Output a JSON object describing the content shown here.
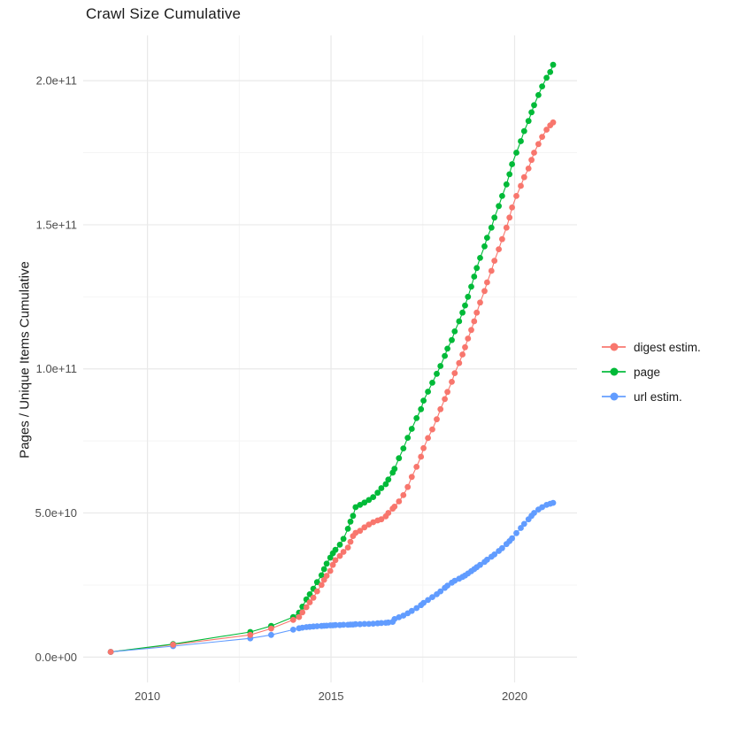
{
  "chart_data": {
    "type": "scatter",
    "title": "Crawl Size Cumulative",
    "xlabel": "",
    "ylabel": "Pages / Unique Items Cumulative",
    "xlim": [
      2008.25,
      2021.7
    ],
    "ylim": [
      -8800000000.0,
      215700000000.0
    ],
    "grid": true,
    "legend_position": "right",
    "colors": {
      "grid_major": "#E9E9E9",
      "grid_minor": "#F4F4F4",
      "axis_text": "#4D4D4D",
      "title_text": "#1a1a1a",
      "background": "#FFFFFF"
    },
    "x_axis": {
      "ticks": [
        {
          "value": 2010,
          "label": "2010"
        },
        {
          "value": 2015,
          "label": "2015"
        },
        {
          "value": 2020,
          "label": "2020"
        }
      ],
      "minor": [
        2012.5,
        2017.5
      ]
    },
    "y_axis": {
      "ticks": [
        {
          "value": 0,
          "label": "0.0e+00"
        },
        {
          "value": 50000000000.0,
          "label": "5.0e+10"
        },
        {
          "value": 100000000000.0,
          "label": "1.0e+11"
        },
        {
          "value": 150000000000.0,
          "label": "1.5e+11"
        },
        {
          "value": 200000000000.0,
          "label": "2.0e+11"
        }
      ],
      "minor": [
        25000000000.0,
        75000000000.0,
        125000000000.0,
        175000000000.0
      ]
    },
    "x": [
      2009.0,
      2010.7,
      2012.8,
      2013.37,
      2013.97,
      2014.13,
      2014.22,
      2014.33,
      2014.42,
      2014.52,
      2014.62,
      2014.74,
      2014.81,
      2014.88,
      2014.98,
      2015.05,
      2015.12,
      2015.24,
      2015.34,
      2015.46,
      2015.53,
      2015.6,
      2015.67,
      2015.79,
      2015.91,
      2016.03,
      2016.15,
      2016.27,
      2016.37,
      2016.49,
      2016.56,
      2016.68,
      2016.73,
      2016.85,
      2016.97,
      2017.09,
      2017.2,
      2017.33,
      2017.45,
      2017.52,
      2017.64,
      2017.76,
      2017.88,
      2017.98,
      2018.1,
      2018.17,
      2018.29,
      2018.37,
      2018.49,
      2018.58,
      2018.65,
      2018.73,
      2018.82,
      2018.9,
      2018.97,
      2019.06,
      2019.18,
      2019.25,
      2019.37,
      2019.45,
      2019.57,
      2019.66,
      2019.78,
      2019.86,
      2019.93,
      2020.05,
      2020.17,
      2020.26,
      2020.38,
      2020.46,
      2020.53,
      2020.65,
      2020.75,
      2020.87,
      2020.97,
      2021.05
    ],
    "series": [
      {
        "name": "digest estim.",
        "color": "#F8766D",
        "values": [
          1800000000.0,
          4300000000.0,
          7700000000.0,
          9900000000.0,
          12900000000.0,
          13900000000.0,
          15500000000.0,
          17300000000.0,
          19000000000.0,
          20600000000.0,
          22800000000.0,
          25000000000.0,
          26800000000.0,
          28200000000.0,
          29900000000.0,
          32000000000.0,
          33600000000.0,
          35100000000.0,
          36500000000.0,
          38000000000.0,
          40000000000.0,
          42000000000.0,
          43100000000.0,
          43800000000.0,
          45000000000.0,
          46000000000.0,
          46800000000.0,
          47400000000.0,
          47800000000.0,
          48800000000.0,
          50000000000.0,
          51500000000.0,
          52200000000.0,
          54000000000.0,
          56200000000.0,
          59000000000.0,
          62500000000.0,
          66000000000.0,
          69500000000.0,
          72500000000.0,
          76000000000.0,
          79000000000.0,
          82500000000.0,
          86000000000.0,
          89500000000.0,
          92000000000.0,
          95500000000.0,
          98500000000.0,
          102000000000.0,
          105000000000.0,
          107500000000.0,
          110500000000.0,
          113500000000.0,
          116500000000.0,
          119500000000.0,
          123000000000.0,
          127000000000.0,
          130000000000.0,
          134000000000.0,
          137500000000.0,
          141500000000.0,
          145000000000.0,
          149000000000.0,
          152500000000.0,
          156000000000.0,
          160000000000.0,
          163500000000.0,
          166500000000.0,
          169500000000.0,
          172500000000.0,
          175000000000.0,
          178000000000.0,
          180500000000.0,
          183000000000.0,
          184500000000.0,
          185500000000.0
        ]
      },
      {
        "name": "page",
        "color": "#00BA38",
        "values": [
          1800000000.0,
          4500000000.0,
          8700000000.0,
          10800000000.0,
          13900000000.0,
          15400000000.0,
          17500000000.0,
          20000000000.0,
          21800000000.0,
          23700000000.0,
          26000000000.0,
          28400000000.0,
          30500000000.0,
          32400000000.0,
          34500000000.0,
          36000000000.0,
          37200000000.0,
          39000000000.0,
          41000000000.0,
          44500000000.0,
          47000000000.0,
          49000000000.0,
          52000000000.0,
          52800000000.0,
          53600000000.0,
          54500000000.0,
          55500000000.0,
          57000000000.0,
          58600000000.0,
          60000000000.0,
          61600000000.0,
          64000000000.0,
          65300000000.0,
          69000000000.0,
          72400000000.0,
          76100000000.0,
          79200000000.0,
          82900000000.0,
          86000000000.0,
          89000000000.0,
          92100000000.0,
          95200000000.0,
          98300000000.0,
          101000000000.0,
          104500000000.0,
          107000000000.0,
          110000000000.0,
          113000000000.0,
          116500000000.0,
          119500000000.0,
          122000000000.0,
          125000000000.0,
          128500000000.0,
          132000000000.0,
          135000000000.0,
          138500000000.0,
          142500000000.0,
          145500000000.0,
          149000000000.0,
          152500000000.0,
          156500000000.0,
          160000000000.0,
          164000000000.0,
          167500000000.0,
          171000000000.0,
          175000000000.0,
          179000000000.0,
          182500000000.0,
          186000000000.0,
          189000000000.0,
          191500000000.0,
          195000000000.0,
          198000000000.0,
          201000000000.0,
          203000000000.0,
          205500000000.0
        ]
      },
      {
        "name": "url estim.",
        "color": "#619CFF",
        "values": [
          1800000000.0,
          3800000000.0,
          6500000000.0,
          7700000000.0,
          9500000000.0,
          10000000000.0,
          10200000000.0,
          10400000000.0,
          10500000000.0,
          10600000000.0,
          10700000000.0,
          10800000000.0,
          10850000000.0,
          10900000000.0,
          11000000000.0,
          11000000000.0,
          11100000000.0,
          11100000000.0,
          11200000000.0,
          11200000000.0,
          11300000000.0,
          11300000000.0,
          11400000000.0,
          11400000000.0,
          11500000000.0,
          11500000000.0,
          11600000000.0,
          11700000000.0,
          11800000000.0,
          11900000000.0,
          12000000000.0,
          12200000000.0,
          13200000000.0,
          13800000000.0,
          14400000000.0,
          15200000000.0,
          16000000000.0,
          17000000000.0,
          18000000000.0,
          18800000000.0,
          19800000000.0,
          20800000000.0,
          21800000000.0,
          22800000000.0,
          24000000000.0,
          24800000000.0,
          25800000000.0,
          26500000000.0,
          27200000000.0,
          27800000000.0,
          28300000000.0,
          29000000000.0,
          29800000000.0,
          30500000000.0,
          31200000000.0,
          32000000000.0,
          33000000000.0,
          33800000000.0,
          34800000000.0,
          35600000000.0,
          36800000000.0,
          37800000000.0,
          39200000000.0,
          40200000000.0,
          41200000000.0,
          43000000000.0,
          44800000000.0,
          46200000000.0,
          47800000000.0,
          49000000000.0,
          50000000000.0,
          51200000000.0,
          52000000000.0,
          52800000000.0,
          53200000000.0,
          53500000000.0
        ]
      }
    ]
  }
}
